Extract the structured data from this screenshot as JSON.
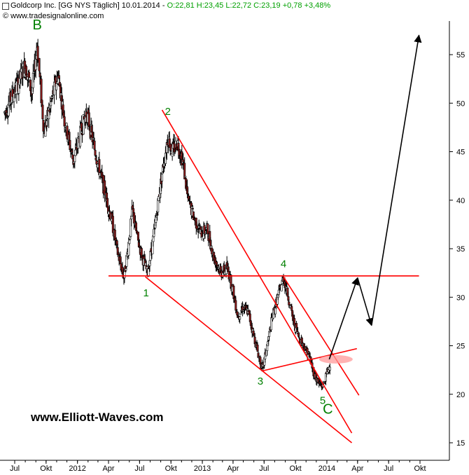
{
  "header": {
    "title": "Goldcorp Inc. [GG NYS  Täglich] 10.01.2014 - ",
    "quote": "O:22,81 H:23,45 L:22,72 C:23,19 +0,78 +3,48%",
    "source": "© www.tradesignalonline.com"
  },
  "watermark": "www.Elliott-Waves.com",
  "chart_data": {
    "type": "candlestick",
    "title": "Goldcorp Inc. [GG NYS  Täglich] 10.01.2014",
    "ylim": [
      13.5,
      59.5
    ],
    "y_ticks": [
      15,
      20,
      25,
      30,
      35,
      40,
      45,
      50,
      55
    ],
    "y_tick_labels": [
      "15",
      "20",
      "25",
      "30",
      "35",
      "40",
      "45",
      "50",
      "55"
    ],
    "x_ticks": [
      "Jul",
      "Okt",
      "2012",
      "Apr",
      "Jul",
      "Okt",
      "2013",
      "Apr",
      "Jul",
      "Okt",
      "2014",
      "Apr",
      "Jul",
      "Okt"
    ],
    "x_tick_dates": [
      "2011-07-01",
      "2011-10-01",
      "2012-01-01",
      "2012-04-01",
      "2012-07-01",
      "2012-10-01",
      "2013-01-01",
      "2013-04-01",
      "2013-07-01",
      "2013-10-01",
      "2014-01-01",
      "2014-04-01",
      "2014-07-01",
      "2014-10-01"
    ],
    "price_path": [
      {
        "date": "2011-06-01",
        "price": 49
      },
      {
        "date": "2011-07-10",
        "price": 52
      },
      {
        "date": "2011-08-01",
        "price": 54
      },
      {
        "date": "2011-08-20",
        "price": 51
      },
      {
        "date": "2011-09-05",
        "price": 56
      },
      {
        "date": "2011-09-25",
        "price": 47
      },
      {
        "date": "2011-10-15",
        "price": 50
      },
      {
        "date": "2011-11-05",
        "price": 53
      },
      {
        "date": "2011-11-25",
        "price": 48
      },
      {
        "date": "2011-12-20",
        "price": 44
      },
      {
        "date": "2012-01-10",
        "price": 47
      },
      {
        "date": "2012-01-28",
        "price": 49
      },
      {
        "date": "2012-02-10",
        "price": 47
      },
      {
        "date": "2012-02-28",
        "price": 44
      },
      {
        "date": "2012-03-20",
        "price": 41
      },
      {
        "date": "2012-04-10",
        "price": 38
      },
      {
        "date": "2012-04-25",
        "price": 35
      },
      {
        "date": "2012-05-16",
        "price": 32
      },
      {
        "date": "2012-05-28",
        "price": 35
      },
      {
        "date": "2012-06-10",
        "price": 39
      },
      {
        "date": "2012-06-25",
        "price": 36
      },
      {
        "date": "2012-07-10",
        "price": 34
      },
      {
        "date": "2012-07-24",
        "price": 32.5
      },
      {
        "date": "2012-08-10",
        "price": 36
      },
      {
        "date": "2012-08-25",
        "price": 40
      },
      {
        "date": "2012-09-10",
        "price": 44
      },
      {
        "date": "2012-09-22",
        "price": 46.5
      },
      {
        "date": "2012-10-05",
        "price": 45
      },
      {
        "date": "2012-10-20",
        "price": 46
      },
      {
        "date": "2012-11-05",
        "price": 44
      },
      {
        "date": "2012-11-20",
        "price": 40
      },
      {
        "date": "2012-12-10",
        "price": 38
      },
      {
        "date": "2012-12-28",
        "price": 36.5
      },
      {
        "date": "2013-01-15",
        "price": 37
      },
      {
        "date": "2013-02-05",
        "price": 34
      },
      {
        "date": "2013-02-25",
        "price": 32.5
      },
      {
        "date": "2013-03-15",
        "price": 33
      },
      {
        "date": "2013-03-30",
        "price": 31
      },
      {
        "date": "2013-04-15",
        "price": 28
      },
      {
        "date": "2013-04-30",
        "price": 29
      },
      {
        "date": "2013-05-15",
        "price": 28.5
      },
      {
        "date": "2013-06-01",
        "price": 26
      },
      {
        "date": "2013-06-15",
        "price": 24
      },
      {
        "date": "2013-06-26",
        "price": 22.5
      },
      {
        "date": "2013-07-10",
        "price": 25
      },
      {
        "date": "2013-07-25",
        "price": 28
      },
      {
        "date": "2013-08-10",
        "price": 30
      },
      {
        "date": "2013-08-27",
        "price": 32
      },
      {
        "date": "2013-09-10",
        "price": 30
      },
      {
        "date": "2013-09-25",
        "price": 27.5
      },
      {
        "date": "2013-10-10",
        "price": 26
      },
      {
        "date": "2013-10-25",
        "price": 25
      },
      {
        "date": "2013-11-10",
        "price": 24
      },
      {
        "date": "2013-11-25",
        "price": 22
      },
      {
        "date": "2013-12-10",
        "price": 21
      },
      {
        "date": "2013-12-20",
        "price": 20.8
      },
      {
        "date": "2014-01-03",
        "price": 22.4
      },
      {
        "date": "2014-01-10",
        "price": 23.19
      }
    ],
    "wave_labels": [
      {
        "text": "B",
        "date": "2011-09-05",
        "price": 57.6,
        "size": "large"
      },
      {
        "text": "1",
        "date": "2012-07-20",
        "price": 30.1,
        "size": "small"
      },
      {
        "text": "2",
        "date": "2012-09-22",
        "price": 48.8,
        "size": "small"
      },
      {
        "text": "3",
        "date": "2013-06-20",
        "price": 21.0,
        "size": "small"
      },
      {
        "text": "4",
        "date": "2013-08-27",
        "price": 33.1,
        "size": "small"
      },
      {
        "text": "5",
        "date": "2013-12-20",
        "price": 19.0,
        "size": "small"
      },
      {
        "text": "C",
        "date": "2014-01-04",
        "price": 18.0,
        "size": "large"
      }
    ],
    "trend_lines": [
      {
        "from": {
          "date": "2012-09-05",
          "price": 49.3
        },
        "to": {
          "date": "2014-03-15",
          "price": 16.0
        }
      },
      {
        "from": {
          "date": "2012-07-18",
          "price": 32.1
        },
        "to": {
          "date": "2014-03-15",
          "price": 15.0
        }
      },
      {
        "from": {
          "date": "2012-04-01",
          "price": 32.2
        },
        "to": {
          "date": "2014-09-28",
          "price": 32.2
        }
      },
      {
        "from": {
          "date": "2013-06-25",
          "price": 22.4
        },
        "to": {
          "date": "2014-03-30",
          "price": 24.7
        }
      },
      {
        "from": {
          "date": "2013-08-27",
          "price": 32.1
        },
        "to": {
          "date": "2014-04-05",
          "price": 19.9
        }
      }
    ],
    "highlight": {
      "date": "2014-01-07",
      "price": 23.6
    },
    "projection_path": [
      {
        "date": "2014-01-08",
        "price": 23.6
      },
      {
        "date": "2014-04-01",
        "price": 32.0
      },
      {
        "date": "2014-05-12",
        "price": 27.1
      },
      {
        "date": "2014-09-28",
        "price": 57.0
      }
    ],
    "colors": {
      "candle_up": "#ffffff",
      "candle_down": "#8b1a1a",
      "wick": "#000000",
      "trend": "#ff0000",
      "label": "#008000",
      "projection": "#000000",
      "highlight": "#ff9999"
    }
  }
}
